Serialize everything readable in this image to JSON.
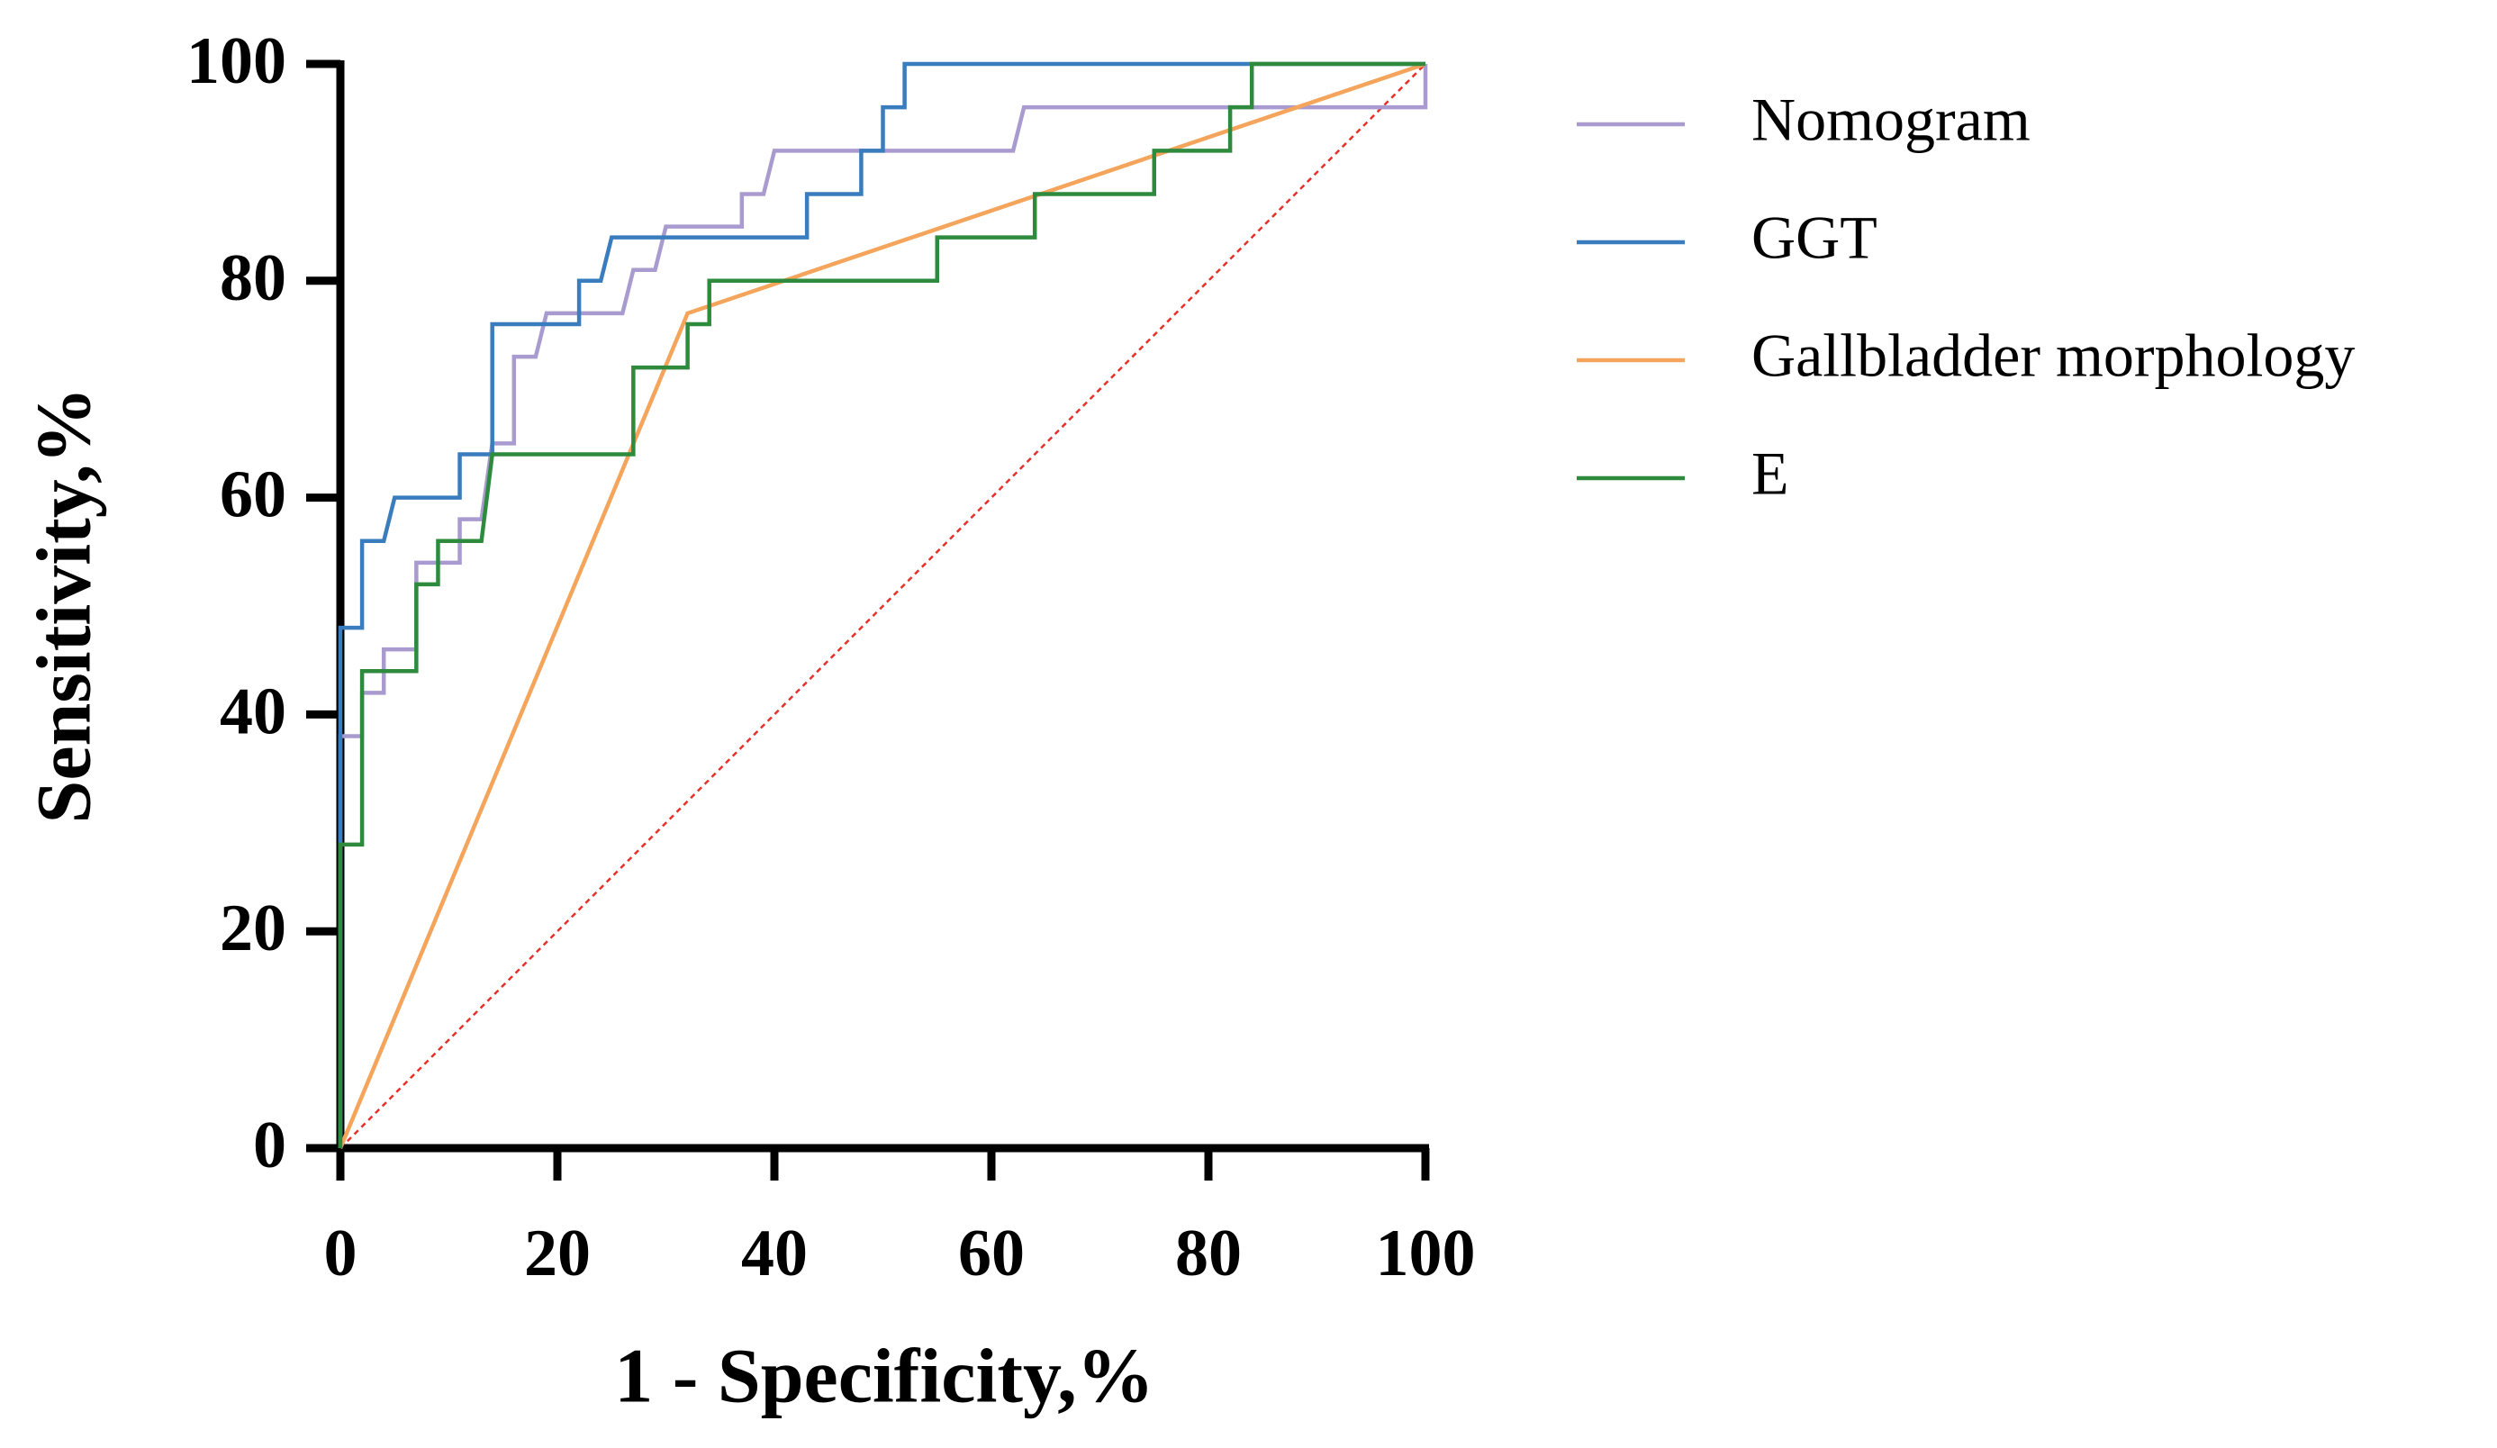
{
  "chart_data": {
    "type": "line",
    "xlabel": "1 - Specificity,%",
    "ylabel": "Sensitivity,%",
    "xlim": [
      0,
      100
    ],
    "ylim": [
      0,
      100
    ],
    "xticks": [
      0,
      20,
      40,
      60,
      80,
      100
    ],
    "yticks": [
      0,
      20,
      40,
      60,
      80,
      100
    ],
    "series": [
      {
        "name": "Nomogram",
        "color": "#a99bd0",
        "x": [
          0,
          0,
          2,
          2,
          4,
          4,
          7,
          7,
          11,
          11,
          13,
          14,
          16,
          16,
          18,
          19,
          26,
          27,
          29,
          30,
          37,
          37,
          39,
          40,
          62,
          63,
          100,
          100
        ],
        "values": [
          0,
          38,
          38,
          42,
          42,
          46,
          46,
          54,
          54,
          58,
          58,
          65,
          65,
          73,
          73,
          77,
          77,
          81,
          81,
          85,
          85,
          88,
          88,
          92,
          92,
          96,
          96,
          100
        ]
      },
      {
        "name": "GGT",
        "color": "#3a7dbf",
        "x": [
          0,
          0,
          2,
          2,
          4,
          5,
          11,
          11,
          14,
          14,
          22,
          22,
          24,
          25,
          43,
          43,
          48,
          48,
          50,
          50,
          52,
          52,
          100
        ],
        "values": [
          0,
          48,
          48,
          56,
          56,
          60,
          60,
          64,
          64,
          76,
          76,
          80,
          80,
          84,
          84,
          88,
          88,
          92,
          92,
          96,
          96,
          100,
          100
        ]
      },
      {
        "name": "Gallbladder morphology",
        "color": "#f5a55b",
        "x": [
          0,
          32,
          100
        ],
        "values": [
          0,
          77,
          100
        ]
      },
      {
        "name": "E",
        "color": "#2e8b3e",
        "x": [
          0,
          0,
          2,
          2,
          7,
          7,
          9,
          9,
          13,
          14,
          27,
          27,
          32,
          32,
          34,
          34,
          55,
          55,
          64,
          64,
          75,
          75,
          82,
          82,
          84,
          84,
          100
        ],
        "values": [
          0,
          28,
          28,
          44,
          44,
          52,
          52,
          56,
          56,
          64,
          64,
          72,
          72,
          76,
          76,
          80,
          80,
          84,
          84,
          88,
          88,
          92,
          92,
          96,
          96,
          100,
          100
        ]
      }
    ]
  }
}
